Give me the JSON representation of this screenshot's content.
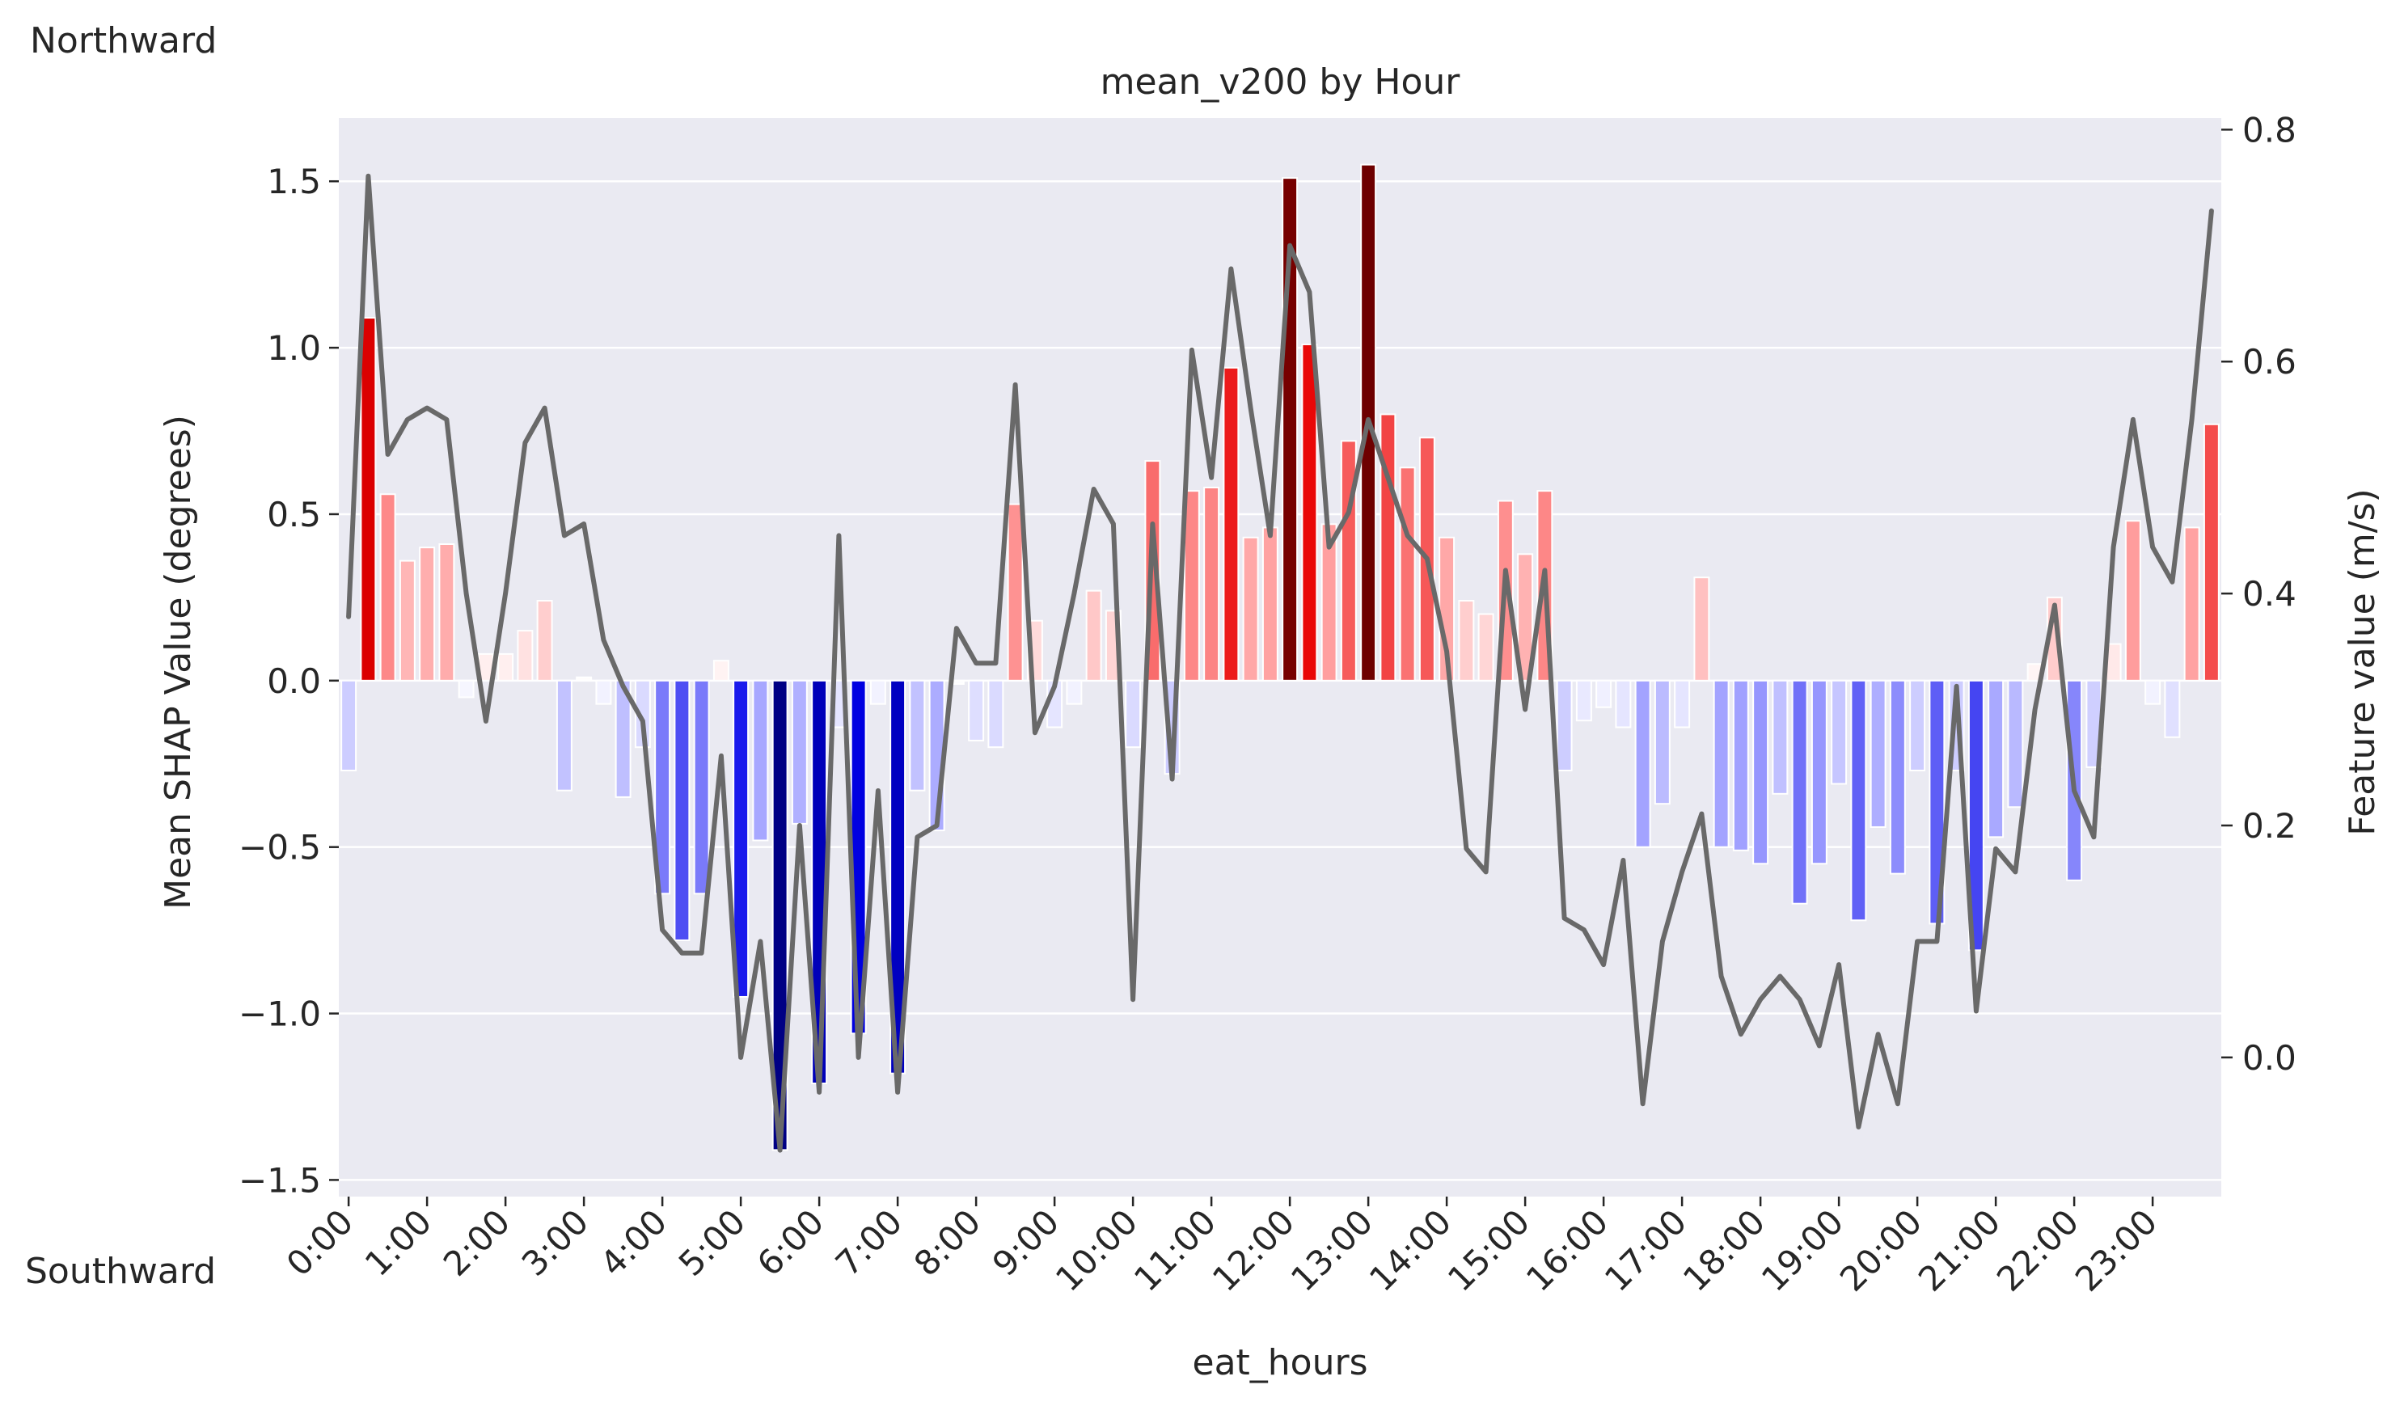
{
  "chart_data": {
    "type": "bar",
    "title": "mean_v200 by Hour",
    "xlabel": "eat_hours",
    "ylabel": "Mean SHAP Value (degrees)",
    "y2label": "Feature value (m/s)",
    "top_annotation": "Northward",
    "bottom_annotation": "Southward",
    "ylim": [
      -1.55,
      1.69
    ],
    "y2lim": [
      -0.12,
      0.81
    ],
    "yticks": [
      -1.5,
      -1.0,
      -0.5,
      0.0,
      0.5,
      1.0,
      1.5
    ],
    "ytick_labels": [
      "−1.5",
      "−1.0",
      "−0.5",
      "0.0",
      "0.5",
      "1.0",
      "1.5"
    ],
    "y2ticks": [
      0.0,
      0.2,
      0.4,
      0.6,
      0.8
    ],
    "y2tick_labels": [
      "0.0",
      "0.2",
      "0.4",
      "0.6",
      "0.8"
    ],
    "xtick_labels": [
      "0:00",
      "1:00",
      "2:00",
      "3:00",
      "4:00",
      "5:00",
      "6:00",
      "7:00",
      "8:00",
      "9:00",
      "10:00",
      "11:00",
      "12:00",
      "13:00",
      "14:00",
      "15:00",
      "16:00",
      "17:00",
      "18:00",
      "19:00",
      "20:00",
      "21:00",
      "22:00",
      "23:00"
    ],
    "grid": true,
    "bar_color_scale": "bwr (blue = negative, red = positive)",
    "shap_series": {
      "name": "Mean SHAP Value",
      "values": [
        -0.27,
        1.09,
        0.56,
        0.36,
        0.4,
        0.41,
        -0.05,
        0.08,
        0.08,
        0.15,
        0.24,
        -0.33,
        0.01,
        -0.07,
        -0.35,
        -0.2,
        -0.64,
        -0.78,
        -0.64,
        0.06,
        -0.95,
        -0.48,
        -1.41,
        -0.43,
        -1.21,
        -0.14,
        -1.06,
        -0.07,
        -1.18,
        -0.33,
        -0.45,
        -0.01,
        -0.18,
        -0.2,
        0.53,
        0.18,
        -0.14,
        -0.07,
        0.27,
        0.21,
        -0.2,
        0.66,
        -0.28,
        0.57,
        0.58,
        0.94,
        0.43,
        0.46,
        1.51,
        1.01,
        0.47,
        0.72,
        1.55,
        0.8,
        0.64,
        0.73,
        0.43,
        0.24,
        0.2,
        0.54,
        0.38,
        0.57,
        -0.27,
        -0.12,
        -0.08,
        -0.14,
        -0.5,
        -0.37,
        -0.14,
        0.31,
        -0.5,
        -0.51,
        -0.55,
        -0.34,
        -0.67,
        -0.55,
        -0.31,
        -0.72,
        -0.44,
        -0.58,
        -0.27,
        -0.73,
        -0.27,
        -0.81,
        -0.47,
        -0.38,
        0.05,
        0.25,
        -0.6,
        -0.26,
        0.11,
        0.48,
        -0.07,
        -0.17,
        0.46,
        0.77
      ]
    },
    "feature_series": {
      "name": "Feature value",
      "color": "#696969",
      "values": [
        0.38,
        0.76,
        0.52,
        0.55,
        0.56,
        0.55,
        0.4,
        0.29,
        0.4,
        0.53,
        0.56,
        0.45,
        0.46,
        0.36,
        0.32,
        0.29,
        0.11,
        0.09,
        0.09,
        0.26,
        0.0,
        0.1,
        -0.08,
        0.2,
        -0.03,
        0.45,
        0.0,
        0.23,
        -0.03,
        0.19,
        0.2,
        0.37,
        0.34,
        0.34,
        0.58,
        0.28,
        0.32,
        0.4,
        0.49,
        0.46,
        0.05,
        0.46,
        0.24,
        0.61,
        0.5,
        0.68,
        0.56,
        0.45,
        0.7,
        0.66,
        0.44,
        0.47,
        0.55,
        0.5,
        0.45,
        0.43,
        0.35,
        0.18,
        0.16,
        0.42,
        0.3,
        0.42,
        0.12,
        0.11,
        0.08,
        0.17,
        -0.04,
        0.1,
        0.16,
        0.21,
        0.07,
        0.02,
        0.05,
        0.07,
        0.05,
        0.01,
        0.08,
        -0.06,
        0.02,
        -0.04,
        0.1,
        0.1,
        0.32,
        0.04,
        0.18,
        0.16,
        0.3,
        0.39,
        0.23,
        0.19,
        0.44,
        0.55,
        0.44,
        0.41,
        0.55,
        0.73
      ]
    }
  }
}
